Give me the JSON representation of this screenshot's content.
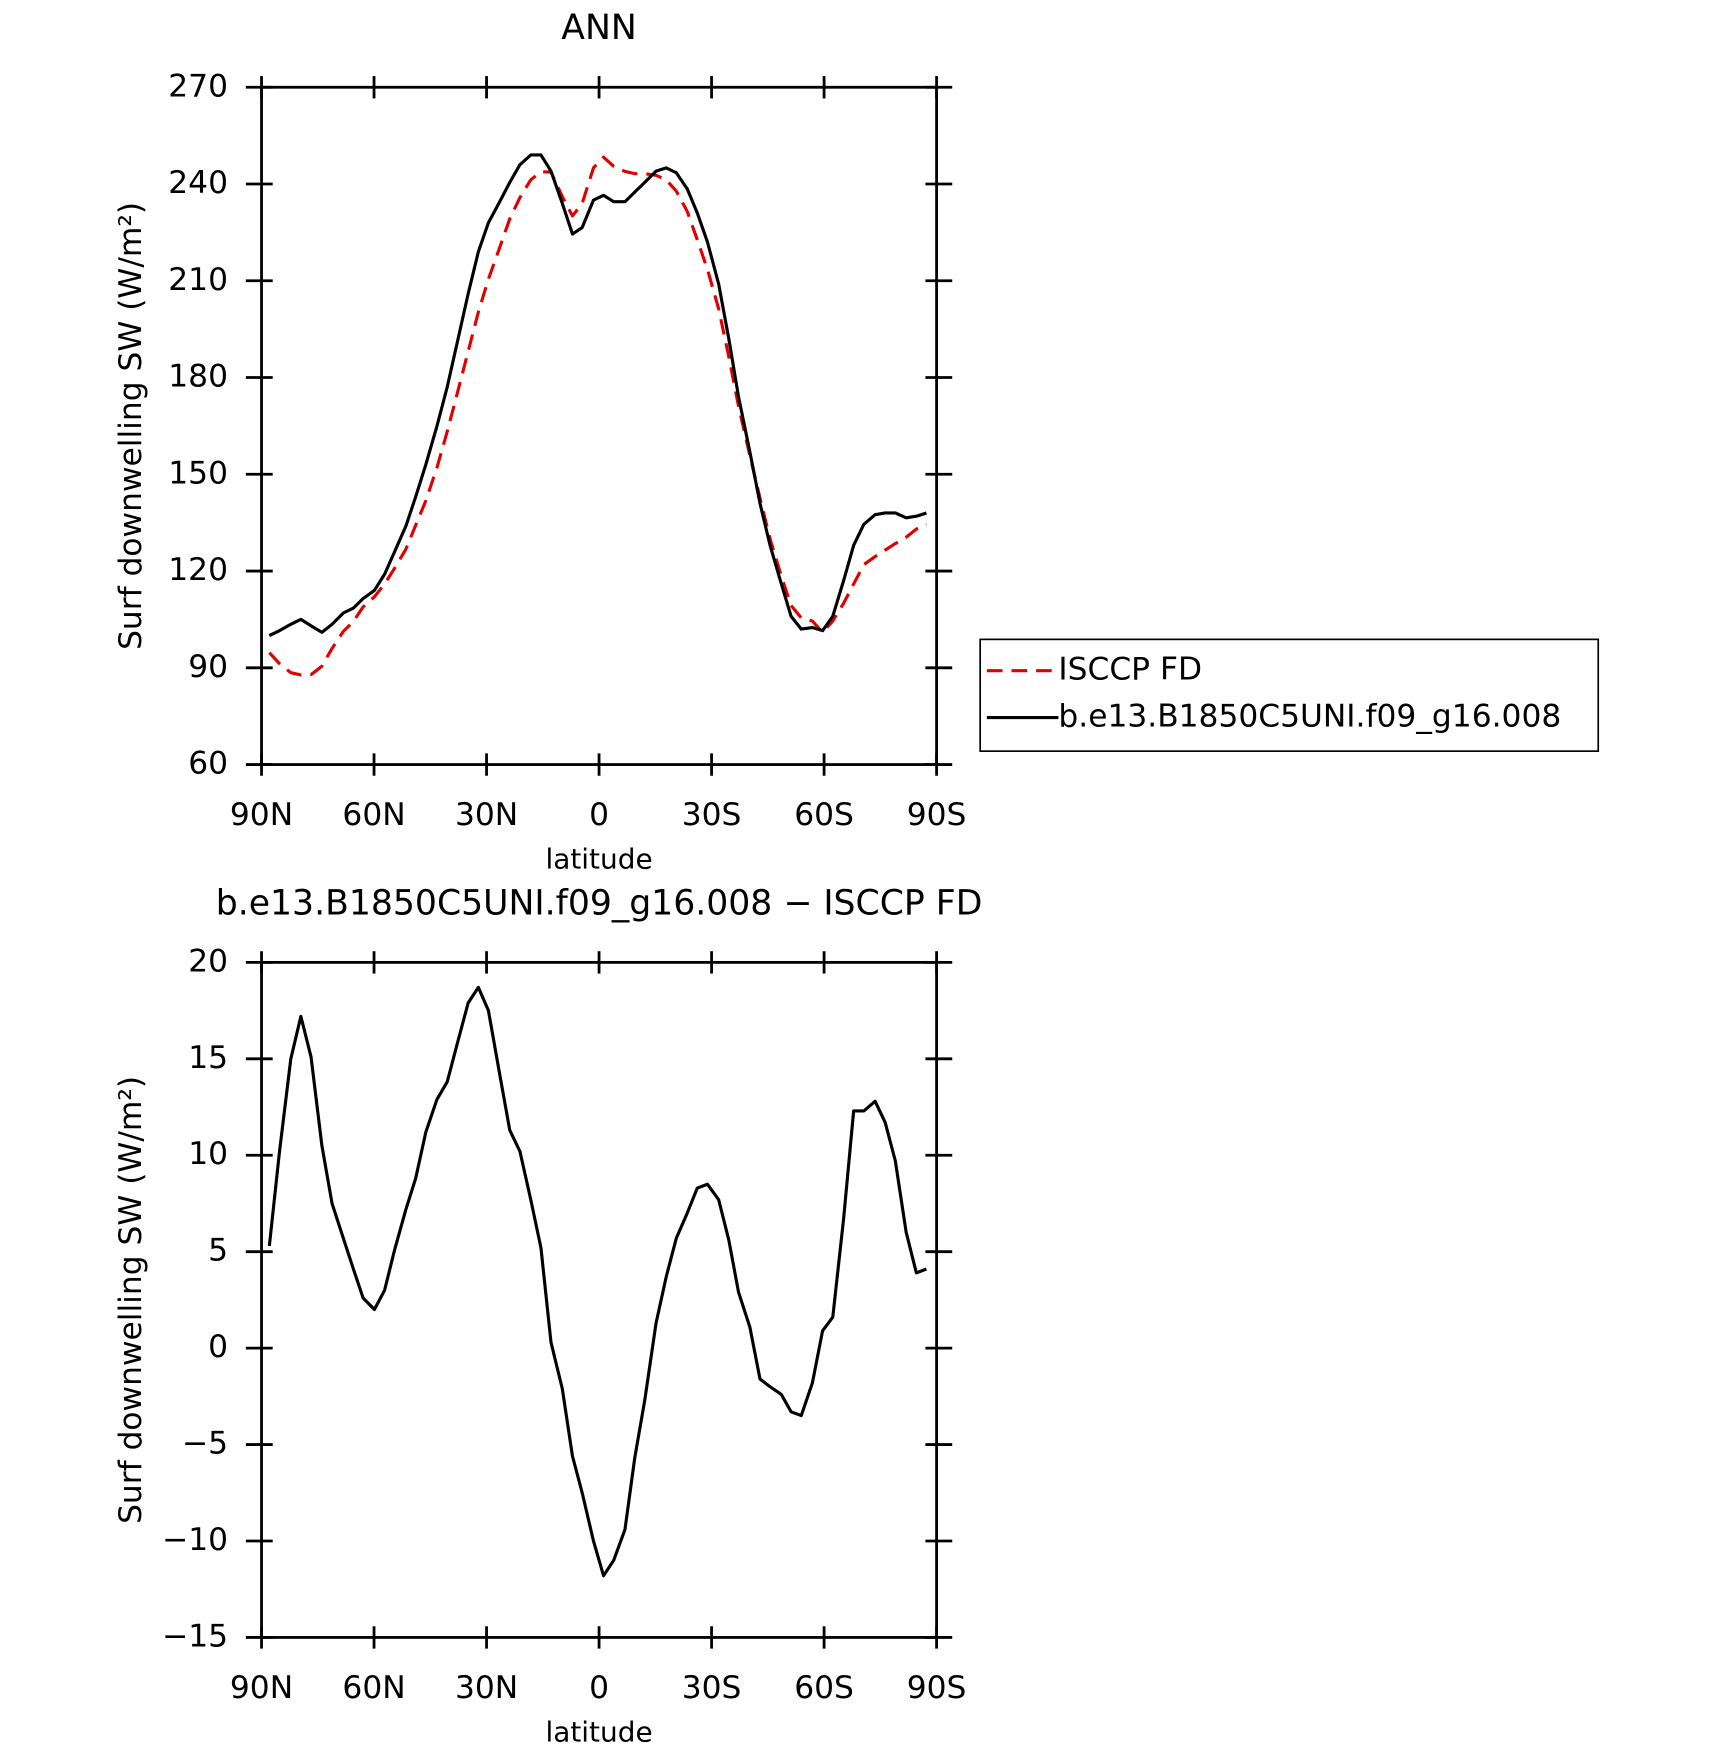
{
  "chart_data": [
    {
      "type": "line",
      "title": "ANN",
      "xlabel": "latitude",
      "ylabel": "Surf downwelling SW (W/m²)",
      "x": [
        87.9,
        85.2,
        82.2,
        79.5,
        76.8,
        73.9,
        71.2,
        68.2,
        65.5,
        62.9,
        59.9,
        57.2,
        54.5,
        51.5,
        48.9,
        46.2,
        43.2,
        40.5,
        37.8,
        34.9,
        32.2,
        29.5,
        26.5,
        23.8,
        21.1,
        18.2,
        15.5,
        12.8,
        9.8,
        7.1,
        4.5,
        1.5,
        -1.2,
        -3.9,
        -6.9,
        -9.5,
        -12.2,
        -15.2,
        -17.9,
        -20.6,
        -23.5,
        -26.2,
        -28.9,
        -31.9,
        -34.6,
        -37.2,
        -40.2,
        -42.9,
        -45.6,
        -48.6,
        -51.2,
        -53.9,
        -56.9,
        -59.6,
        -62.3,
        -65.2,
        -67.9,
        -70.6,
        -73.6,
        -76.3,
        -79.0,
        -81.9,
        -84.6,
        -87.3
      ],
      "series": [
        {
          "name": "ISCCP FD",
          "color": "#e00000",
          "line_style": "dashed",
          "values": [
            94.7,
            91.3,
            88.5,
            87.8,
            87.9,
            90.5,
            96,
            101.3,
            104.4,
            108.9,
            112,
            116,
            120.9,
            126.8,
            134.2,
            141.8,
            152.1,
            163.2,
            175.2,
            188.1,
            200.3,
            210.5,
            220.3,
            229.2,
            235.8,
            241.3,
            243.8,
            243.7,
            236.1,
            230.1,
            234,
            245,
            248.3,
            245.5,
            243.9,
            243.2,
            243.2,
            242.7,
            241.3,
            237.8,
            231.5,
            222.7,
            213.5,
            201.3,
            186.4,
            171.1,
            155.9,
            142.6,
            130,
            118.4,
            109.3,
            105.5,
            104.5,
            101,
            104.5,
            110,
            116,
            122,
            124.5,
            126.5,
            128.5,
            130.5,
            133,
            134.5
          ]
        },
        {
          "name": "b.e13.B1850C5UNI.f09_g16.008",
          "color": "#000000",
          "line_style": "solid",
          "values": [
            100,
            101.5,
            103.5,
            105,
            103,
            101,
            103.5,
            107,
            108.5,
            111.5,
            114,
            119,
            126,
            134,
            143,
            153,
            165,
            177,
            191,
            206,
            219,
            228,
            234.5,
            240.5,
            246,
            249,
            249,
            244,
            234,
            224.5,
            226.5,
            235,
            236.5,
            234.5,
            234.5,
            237.5,
            240.5,
            244,
            245,
            243.5,
            238.5,
            231,
            222,
            209,
            192,
            174,
            157,
            141,
            128,
            116,
            106,
            102,
            102.5,
            101.5,
            106,
            117,
            128,
            134.5,
            137.5,
            138,
            138,
            136.5,
            137,
            138
          ]
        }
      ],
      "xlim": [
        90,
        -90
      ],
      "xticks": [
        {
          "value": 90,
          "label": "90N"
        },
        {
          "value": 60,
          "label": "60N"
        },
        {
          "value": 30,
          "label": "30N"
        },
        0,
        {
          "value": -30,
          "label": "30S"
        },
        {
          "value": -60,
          "label": "60S"
        },
        {
          "value": -90,
          "label": "90S"
        }
      ],
      "ylim": [
        60,
        270
      ],
      "yticks": [
        60,
        90,
        120,
        150,
        180,
        210,
        240,
        270
      ],
      "legend": "right"
    },
    {
      "type": "line",
      "title": "b.e13.B1850C5UNI.f09_g16.008 − ISCCP FD",
      "xlabel": "latitude",
      "ylabel": "Surf downwelling SW (W/m²)",
      "x": [
        87.9,
        85.2,
        82.2,
        79.5,
        76.8,
        73.9,
        71.2,
        68.2,
        65.5,
        62.9,
        59.9,
        57.2,
        54.5,
        51.5,
        48.9,
        46.2,
        43.2,
        40.5,
        37.8,
        34.9,
        32.2,
        29.5,
        26.5,
        23.8,
        21.1,
        18.2,
        15.5,
        12.8,
        9.8,
        7.1,
        4.5,
        1.5,
        -1.2,
        -3.9,
        -6.9,
        -9.5,
        -12.2,
        -15.2,
        -17.9,
        -20.6,
        -23.5,
        -26.2,
        -28.9,
        -31.9,
        -34.6,
        -37.2,
        -40.2,
        -42.9,
        -45.6,
        -48.6,
        -51.2,
        -53.9,
        -56.9,
        -59.6,
        -62.3,
        -65.2,
        -67.9,
        -70.6,
        -73.6,
        -76.3,
        -79.0,
        -81.9,
        -84.6,
        -87.3
      ],
      "values": [
        5.3,
        10.2,
        15.0,
        17.2,
        15.1,
        10.5,
        7.5,
        5.7,
        4.1,
        2.6,
        2.0,
        3.0,
        5.1,
        7.2,
        8.8,
        11.2,
        12.9,
        13.8,
        15.8,
        17.9,
        18.7,
        17.5,
        14.2,
        11.3,
        10.2,
        7.7,
        5.2,
        0.3,
        -2.1,
        -5.6,
        -7.5,
        -10.0,
        -11.8,
        -11.0,
        -9.4,
        -5.7,
        -2.7,
        1.3,
        3.7,
        5.7,
        7.0,
        8.3,
        8.5,
        7.7,
        5.6,
        2.9,
        1.1,
        -1.6,
        -2.0,
        -2.4,
        -3.3,
        -3.5,
        -1.8,
        0.9,
        1.6,
        6.7,
        12.3,
        12.3,
        12.8,
        11.7,
        9.7,
        6.0,
        3.9,
        4.1
      ],
      "color": "#000000",
      "xlim": [
        90,
        -90
      ],
      "xticks": [
        {
          "value": 90,
          "label": "90N"
        },
        {
          "value": 60,
          "label": "60N"
        },
        {
          "value": 30,
          "label": "30N"
        },
        0,
        {
          "value": -30,
          "label": "30S"
        },
        {
          "value": -60,
          "label": "60S"
        },
        {
          "value": -90,
          "label": "90S"
        }
      ],
      "ylim": [
        -15,
        20
      ],
      "yticks": [
        {
          "value": -15,
          "label": "−15"
        },
        {
          "value": -10,
          "label": "−10"
        },
        {
          "value": -5,
          "label": "−5"
        },
        0,
        5,
        10,
        15,
        20
      ]
    }
  ]
}
